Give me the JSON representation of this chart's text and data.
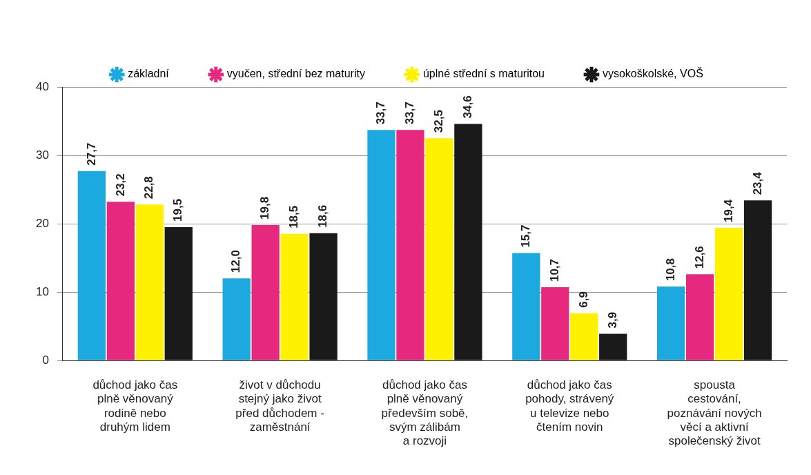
{
  "chart_data": {
    "type": "bar",
    "categories": [
      "důchod jako čas\nplně věnovaný\nrodině nebo\ndruhým lidem",
      "život v důchodu\nstejný jako život\npřed důchodem -\nzaměstnání",
      "důchod jako čas\nplně věnovaný\npředevším sobě,\nsvým zálibám\na rozvoji",
      "důchod jako čas\npohody, strávený\nu televize nebo\nčtením novin",
      "spousta\ncestování,\npoznávání nových\nvěcí a aktivní\nspolečenský život"
    ],
    "series": [
      {
        "name": "základní",
        "color": "#1ba9df",
        "values": [
          27.7,
          12.0,
          33.7,
          15.7,
          10.8
        ],
        "value_labels": [
          "27,7",
          "12,0",
          "33,7",
          "15,7",
          "10,8"
        ]
      },
      {
        "name": "vyučen, střední bez maturity",
        "color": "#e6297f",
        "values": [
          23.2,
          19.8,
          33.7,
          10.7,
          12.6
        ],
        "value_labels": [
          "23,2",
          "19,8",
          "33,7",
          "10,7",
          "12,6"
        ]
      },
      {
        "name": "úplné střední s maturitou",
        "color": "#fff200",
        "values": [
          22.8,
          18.5,
          32.5,
          6.9,
          19.4
        ],
        "value_labels": [
          "22,8",
          "18,5",
          "32,5",
          "6,9",
          "19,4"
        ]
      },
      {
        "name": "vysokoškolské, VOŠ",
        "color": "#1a1a1a",
        "values": [
          19.5,
          18.6,
          34.6,
          3.9,
          23.4
        ],
        "value_labels": [
          "19,5",
          "18,6",
          "34,6",
          "3,9",
          "23,4"
        ]
      }
    ],
    "ylim": [
      0,
      40
    ],
    "yticks": [
      0,
      10,
      20,
      30,
      40
    ],
    "grid": "y",
    "legend": "top",
    "marker": "star"
  }
}
